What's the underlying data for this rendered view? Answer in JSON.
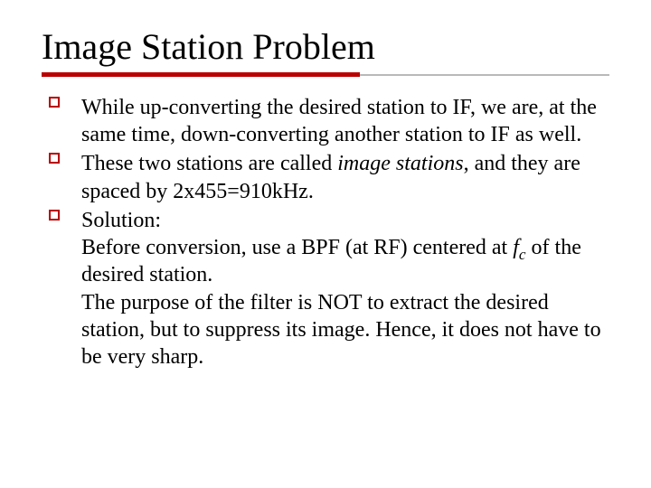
{
  "colors": {
    "accent_red": "#b90000",
    "rule_gray": "#b9b9b9",
    "text": "#000000",
    "background": "#ffffff"
  },
  "typography": {
    "title_font_family": "Times New Roman",
    "title_font_size_pt": 40,
    "body_font_family": "Times New Roman",
    "body_font_size_pt": 24
  },
  "title": "Image Station Problem",
  "bullets": [
    {
      "t1": "While up-converting the desired station to IF, we are, at the same time, down-converting another station to IF as well."
    },
    {
      "t1": "These two stations are called ",
      "em": "image stations",
      "t2": ", and they are spaced by 2x455=910kHz."
    },
    {
      "t1": "Solution:",
      "line2a": "Before conversion, use a BPF (at RF) centered at ",
      "fvar": "f",
      "fsub": "c",
      "line2b": " of the desired station.",
      "line3": "The purpose of the filter is NOT to extract the desired station, but to suppress its image. Hence, it does not have to be very sharp."
    }
  ]
}
